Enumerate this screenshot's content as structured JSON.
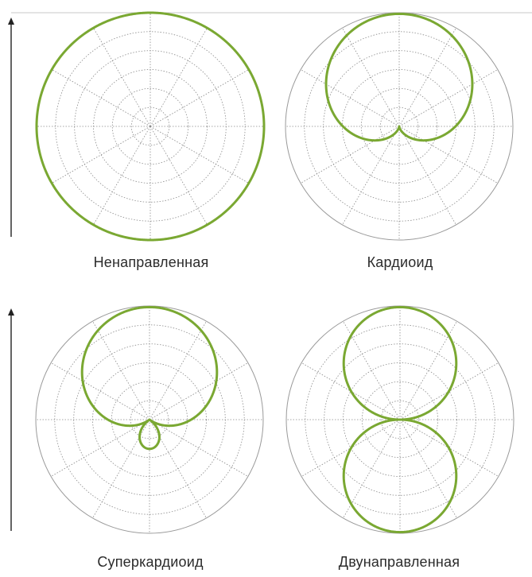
{
  "patterns": [
    {
      "label": "Ненаправленная",
      "shape": "omnidirectional"
    },
    {
      "label": "Кардиоид",
      "shape": "cardioid"
    },
    {
      "label": "Суперкардиоид",
      "shape": "supercardioid"
    },
    {
      "label": "Двунаправленная",
      "shape": "figure-eight"
    }
  ],
  "colors": {
    "pattern": "#7aa832",
    "grid_solid": "#9a9a9a",
    "grid_dotted": "#8a8a8a",
    "arrow": "#222222",
    "frame": "#c8c8c8"
  }
}
